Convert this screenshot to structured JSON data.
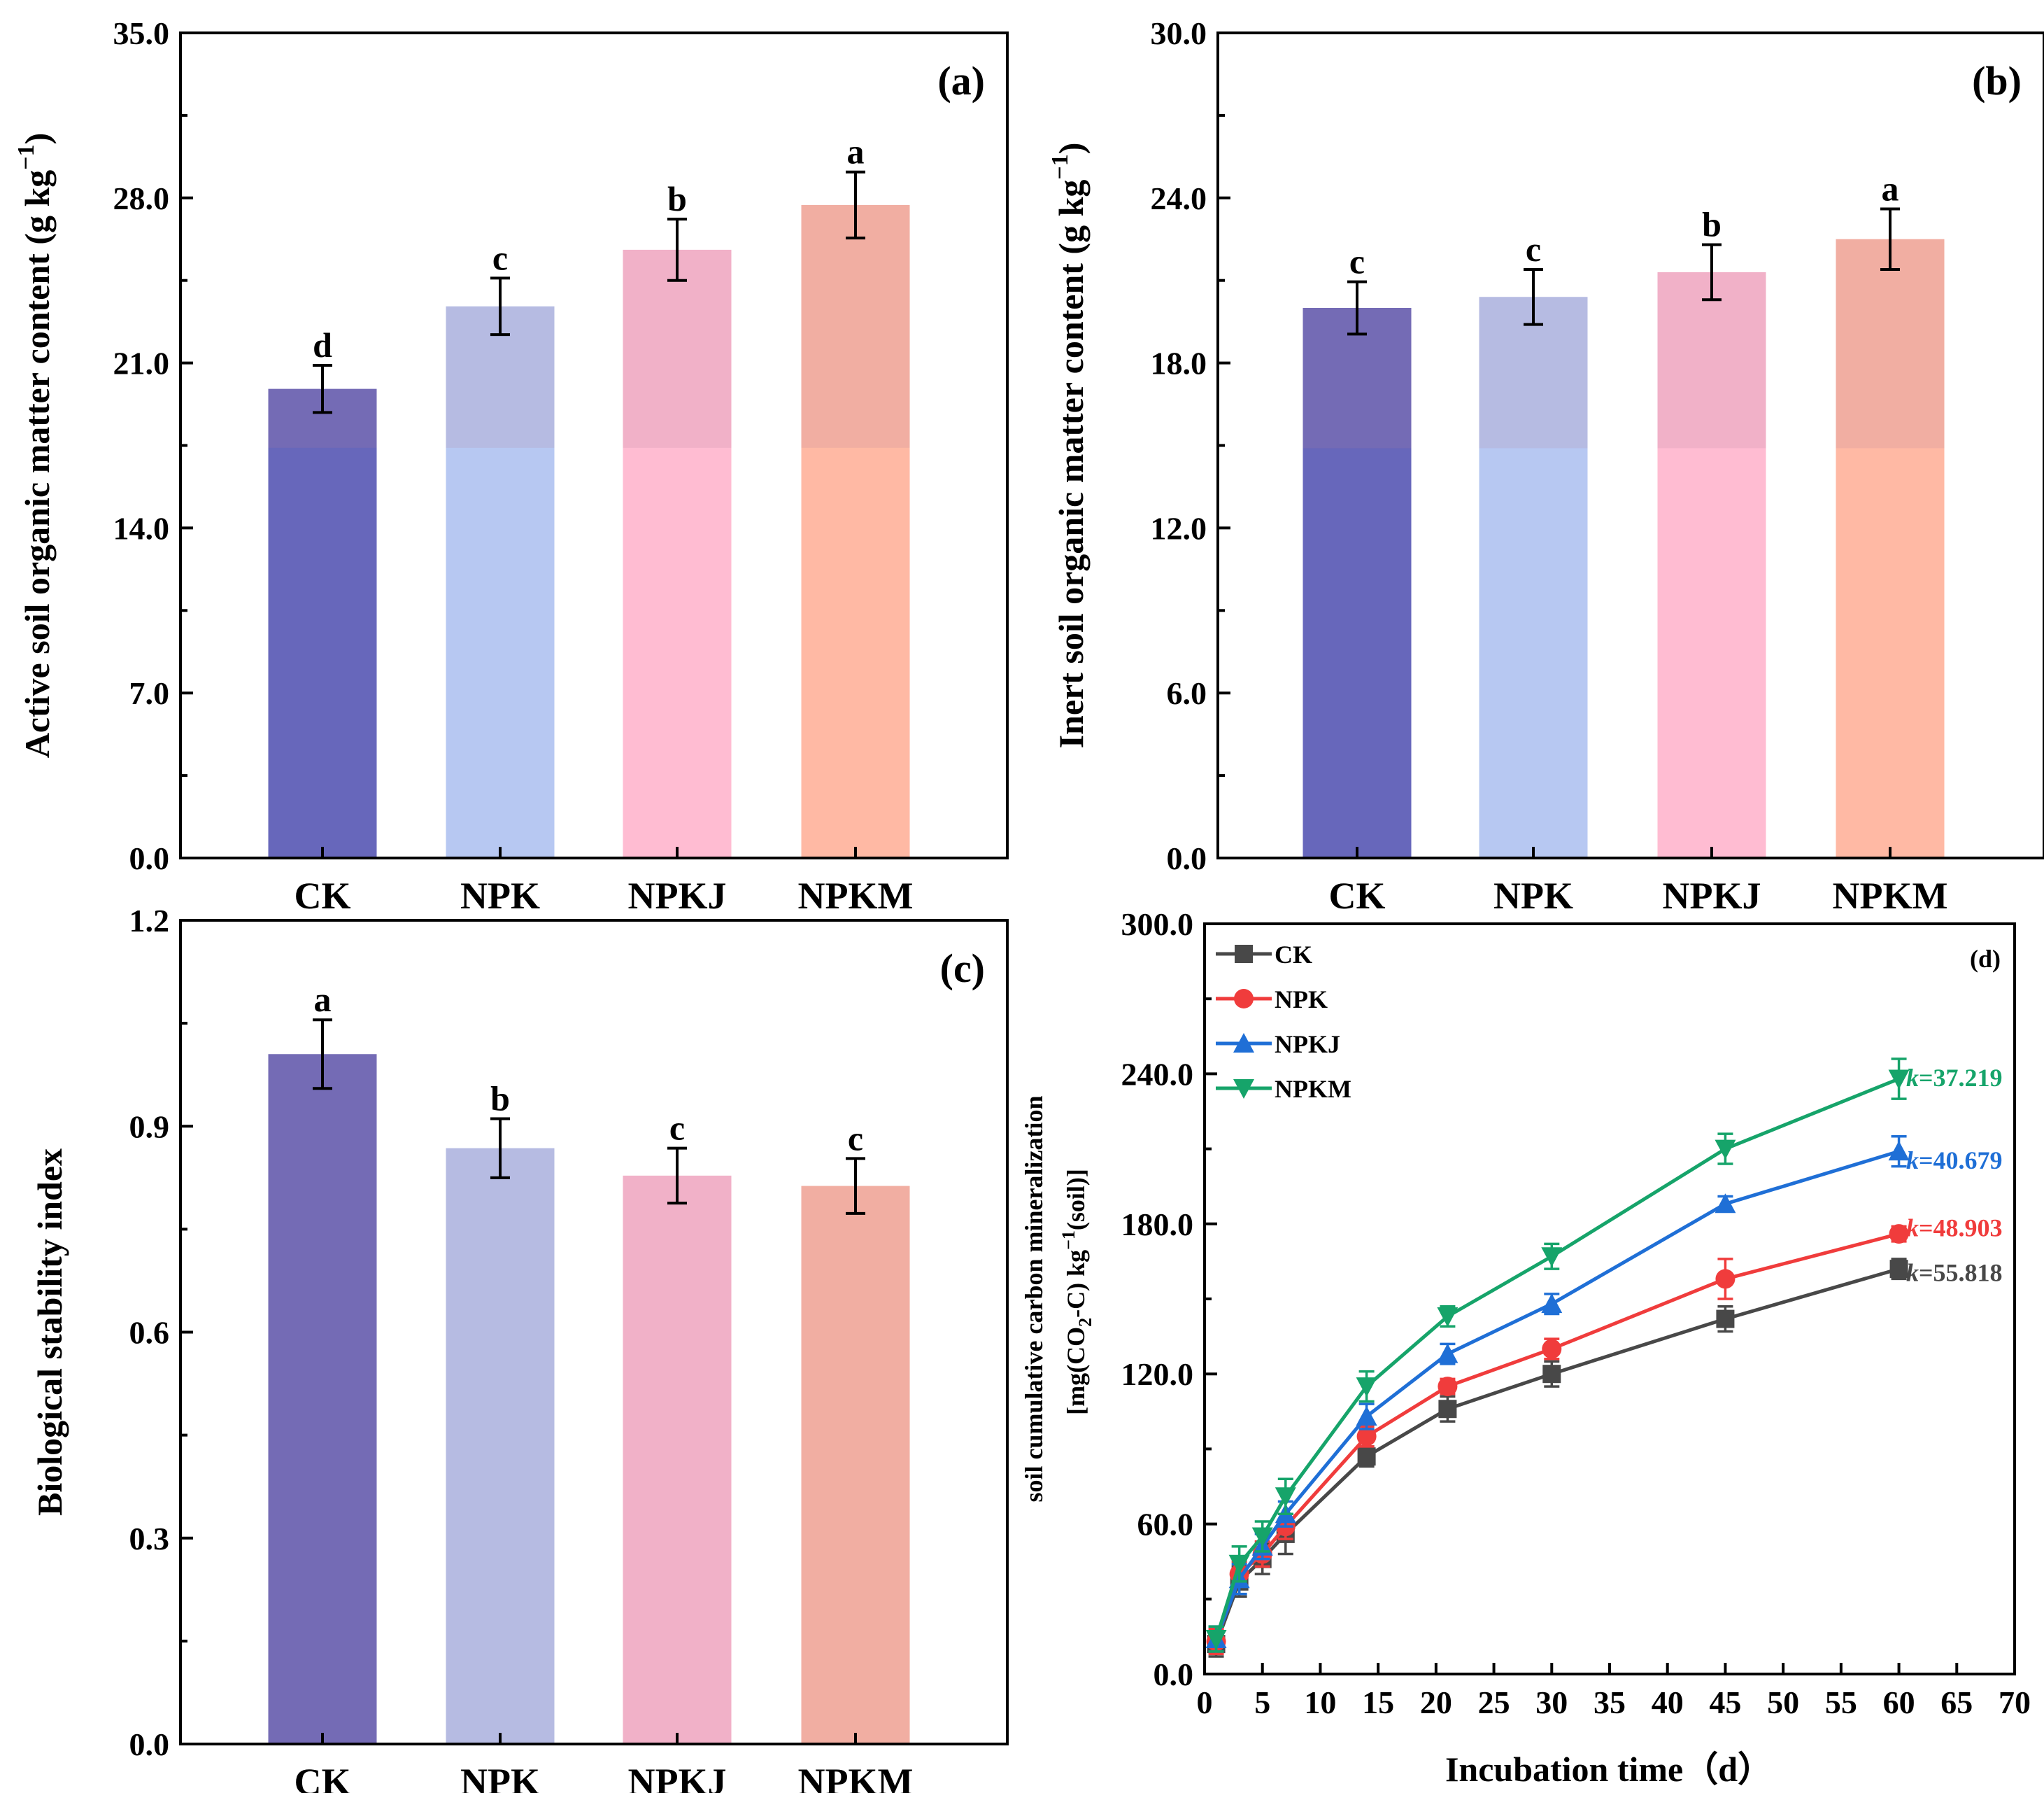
{
  "colors": {
    "CK": "#6767BB",
    "NPK": "#B7C8F2",
    "NPKJ": "#FFBCD2",
    "NPKM": "#FFB9A4",
    "overlay": "#B07F9C",
    "line_CK": "#484848",
    "line_NPK": "#F03C3C",
    "line_NPKJ": "#1F6FD6",
    "line_NPKM": "#16A46A"
  },
  "chart_data": [
    {
      "id": "a",
      "type": "bar",
      "panel_label": "(a)",
      "title": "",
      "xlabel": "",
      "ylabel": "Active soil organic matter content (g kg",
      "ylabel_sup": "−1",
      "ylabel_tail": ")",
      "ylim": [
        0,
        35
      ],
      "yticks": [
        "0.0",
        "7.0",
        "14.0",
        "21.0",
        "28.0",
        "35.0"
      ],
      "categories": [
        "CK",
        "NPK",
        "NPKJ",
        "NPKM"
      ],
      "values": [
        19.9,
        23.4,
        25.8,
        27.7
      ],
      "errors": [
        1.0,
        1.2,
        1.3,
        1.4
      ],
      "letters": [
        "d",
        "c",
        "b",
        "a"
      ],
      "grid": false
    },
    {
      "id": "b",
      "type": "bar",
      "panel_label": "(b)",
      "title": "",
      "xlabel": "",
      "ylabel": "Inert soil organic matter content (g kg",
      "ylabel_sup": "−1",
      "ylabel_tail": ")",
      "ylim": [
        0,
        30
      ],
      "yticks": [
        "0.0",
        "6.0",
        "12.0",
        "18.0",
        "24.0",
        "30.0"
      ],
      "categories": [
        "CK",
        "NPK",
        "NPKJ",
        "NPKM"
      ],
      "values": [
        20.0,
        20.4,
        21.3,
        22.5
      ],
      "errors": [
        0.95,
        1.0,
        1.0,
        1.1
      ],
      "letters": [
        "c",
        "c",
        "b",
        "a"
      ],
      "grid": false
    },
    {
      "id": "c",
      "type": "bar",
      "panel_label": "(c)",
      "title": "",
      "xlabel": "",
      "ylabel": "Biological stability index",
      "ylim": [
        0,
        1.2
      ],
      "yticks": [
        "0.0",
        "0.3",
        "0.6",
        "0.9",
        "1.2"
      ],
      "categories": [
        "CK",
        "NPK",
        "NPKJ",
        "NPKM"
      ],
      "values": [
        1.005,
        0.868,
        0.828,
        0.813
      ],
      "errors": [
        0.05,
        0.043,
        0.04,
        0.04
      ],
      "letters": [
        "a",
        "b",
        "c",
        "c"
      ],
      "grid": false
    },
    {
      "id": "d",
      "type": "line",
      "panel_label": "(d)",
      "title": "",
      "xlabel": "Incubation time（d）",
      "ylabel_line1": "soil cumulative carbon mineralization",
      "ylabel_line2": "[mg(CO",
      "ylabel_line2_sub": "2",
      "ylabel_line2_mid": "-C) kg",
      "ylabel_line2_sup": "−1",
      "ylabel_line2_tail": "(soil)]",
      "xlim": [
        0,
        70
      ],
      "ylim": [
        0,
        300
      ],
      "xticks": [
        "0",
        "5",
        "10",
        "15",
        "20",
        "25",
        "30",
        "35",
        "40",
        "45",
        "50",
        "55",
        "60",
        "65",
        "70"
      ],
      "yticks": [
        "0.0",
        "60.0",
        "120.0",
        "180.0",
        "240.0",
        "300.0"
      ],
      "x": [
        1,
        3,
        5,
        7,
        14,
        21,
        30,
        45,
        60
      ],
      "legend_position": "top-left",
      "series": [
        {
          "name": "CK",
          "marker": "square",
          "values": [
            12,
            37,
            46,
            56,
            87,
            106,
            120,
            142,
            162
          ],
          "errors": [
            5,
            6,
            6,
            8,
            4,
            5,
            5,
            5,
            4
          ],
          "k_prefix": "k",
          "k_value": "=55.818"
        },
        {
          "name": "NPK",
          "marker": "circle",
          "values": [
            13,
            40,
            48,
            59,
            95,
            115,
            130,
            158,
            176
          ],
          "errors": [
            5,
            5,
            5,
            5,
            4,
            3,
            4,
            8,
            3
          ],
          "k_prefix": "k",
          "k_value": "=48.903"
        },
        {
          "name": "NPKJ",
          "marker": "triangle-up",
          "values": [
            14,
            38,
            51,
            64,
            103,
            128,
            148,
            188,
            209
          ],
          "errors": [
            5,
            6,
            5,
            5,
            5,
            4,
            4,
            3,
            6
          ],
          "k_prefix": "k",
          "k_value": "=40.679"
        },
        {
          "name": "NPKM",
          "marker": "triangle-down",
          "values": [
            14,
            44,
            55,
            71,
            115,
            143,
            167,
            210,
            238
          ],
          "errors": [
            5,
            7,
            6,
            7,
            6,
            4,
            5,
            6,
            8
          ],
          "k_prefix": "k",
          "k_value": "=37.219"
        }
      ]
    }
  ]
}
